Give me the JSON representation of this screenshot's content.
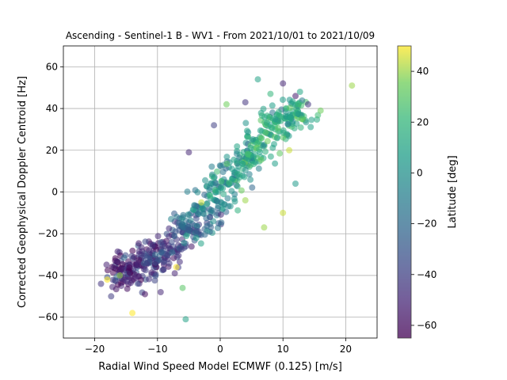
{
  "chart_data": {
    "type": "scatter",
    "title": "Ascending - Sentinel-1 B - WV1 - From 2021/10/01 to 2021/10/09",
    "xlabel": "Radial Wind Speed Model ECMWF (0.125) [m/s]",
    "ylabel": "Corrected Geophysical Doppler Centroid [Hz]",
    "xlim": [
      -25,
      25
    ],
    "ylim": [
      -70,
      70
    ],
    "xticks": [
      -20,
      -10,
      0,
      10,
      20
    ],
    "yticks": [
      -60,
      -40,
      -20,
      0,
      20,
      40,
      60
    ],
    "xtick_labels": [
      "−20",
      "−10",
      "0",
      "10",
      "20"
    ],
    "ytick_labels": [
      "−60",
      "−40",
      "−20",
      "0",
      "20",
      "40",
      "60"
    ],
    "grid": true,
    "marker_alpha": 0.55,
    "colorbar": {
      "label": "Latitude [deg]",
      "colormap": "viridis",
      "range": [
        -65,
        50
      ],
      "ticks": [
        -60,
        -40,
        -20,
        0,
        20,
        40
      ],
      "tick_labels": [
        "−60",
        "−40",
        "−20",
        "0",
        "20",
        "40"
      ]
    },
    "cluster_points": [
      {
        "x": -14,
        "y": -36,
        "c": -45
      },
      {
        "x": -12,
        "y": -34,
        "c": -50
      },
      {
        "x": -10,
        "y": -30,
        "c": -40
      },
      {
        "x": -8,
        "y": -27,
        "c": -45
      },
      {
        "x": -6,
        "y": -20,
        "c": -30
      },
      {
        "x": -4,
        "y": -15,
        "c": -20
      },
      {
        "x": -2,
        "y": -8,
        "c": -15
      },
      {
        "x": 0,
        "y": 0,
        "c": 0
      },
      {
        "x": 2,
        "y": 8,
        "c": 5
      },
      {
        "x": 4,
        "y": 15,
        "c": 10
      },
      {
        "x": 6,
        "y": 22,
        "c": 12
      },
      {
        "x": 8,
        "y": 30,
        "c": 15
      },
      {
        "x": 10,
        "y": 35,
        "c": 10
      },
      {
        "x": -16,
        "y": -38,
        "c": -50
      },
      {
        "x": 12,
        "y": 38,
        "c": 8
      }
    ],
    "outlier_points": [
      {
        "x": 21,
        "y": 51,
        "c": 40
      },
      {
        "x": 6,
        "y": 54,
        "c": 10
      },
      {
        "x": 10,
        "y": 52,
        "c": -50
      },
      {
        "x": 16,
        "y": 39,
        "c": 35
      },
      {
        "x": 14,
        "y": 42,
        "c": -45
      },
      {
        "x": 12,
        "y": 46,
        "c": -55
      },
      {
        "x": 12,
        "y": 4,
        "c": 5
      },
      {
        "x": 10,
        "y": -10,
        "c": 45
      },
      {
        "x": 11,
        "y": 20,
        "c": 45
      },
      {
        "x": 7,
        "y": -17,
        "c": 40
      },
      {
        "x": -14,
        "y": -58,
        "c": 50
      },
      {
        "x": -5.5,
        "y": -61,
        "c": 10
      },
      {
        "x": -6,
        "y": -46,
        "c": 30
      },
      {
        "x": -18,
        "y": -42,
        "c": 50
      },
      {
        "x": -19,
        "y": -44,
        "c": -45
      },
      {
        "x": -7,
        "y": -36,
        "c": 50
      },
      {
        "x": -16,
        "y": -40,
        "c": 40
      },
      {
        "x": -9.5,
        "y": -48,
        "c": -50
      },
      {
        "x": -12,
        "y": -49,
        "c": -60
      },
      {
        "x": 1,
        "y": 42,
        "c": 35
      },
      {
        "x": -1,
        "y": 32,
        "c": -40
      },
      {
        "x": 4,
        "y": 43,
        "c": -45
      },
      {
        "x": 13,
        "y": 35,
        "c": 30
      },
      {
        "x": 8,
        "y": 47,
        "c": 20
      },
      {
        "x": -5,
        "y": 19,
        "c": -50
      },
      {
        "x": -3,
        "y": -5,
        "c": 45
      },
      {
        "x": 4,
        "y": -4,
        "c": 40
      }
    ]
  }
}
